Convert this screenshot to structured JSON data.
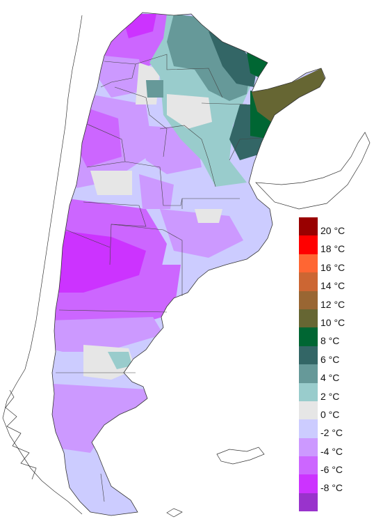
{
  "legend": {
    "items": [
      {
        "label": "20 °C",
        "color": "#990000"
      },
      {
        "label": "18 °C",
        "color": "#ff0000"
      },
      {
        "label": "16 °C",
        "color": "#ff6633"
      },
      {
        "label": "14 °C",
        "color": "#cc6633"
      },
      {
        "label": "12 °C",
        "color": "#996633"
      },
      {
        "label": "10 °C",
        "color": "#666633"
      },
      {
        "label": "8 °C",
        "color": "#006633"
      },
      {
        "label": "6 °C",
        "color": "#336666"
      },
      {
        "label": "4 °C",
        "color": "#669999"
      },
      {
        "label": "2 °C",
        "color": "#99cccc"
      },
      {
        "label": "0 °C",
        "color": "#e6e6e6"
      },
      {
        "label": "-2 °C",
        "color": "#ccccff"
      },
      {
        "label": "-4 °C",
        "color": "#cc99ff"
      },
      {
        "label": "-6 °C",
        "color": "#cc66ff"
      },
      {
        "label": "-8 °C",
        "color": "#cc33ff"
      },
      {
        "label": "",
        "color": "#9933cc"
      }
    ]
  }
}
